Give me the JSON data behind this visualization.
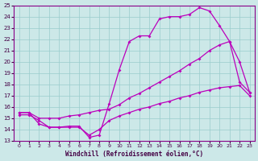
{
  "xlabel": "Windchill (Refroidissement éolien,°C)",
  "background_color": "#cce8e8",
  "line_color": "#bb00bb",
  "grid_color": "#99cccc",
  "xlim": [
    -0.5,
    23.5
  ],
  "ylim": [
    13,
    25
  ],
  "xticks": [
    0,
    1,
    2,
    3,
    4,
    5,
    6,
    7,
    8,
    9,
    10,
    11,
    12,
    13,
    14,
    15,
    16,
    17,
    18,
    19,
    20,
    21,
    22,
    23
  ],
  "yticks": [
    13,
    14,
    15,
    16,
    17,
    18,
    19,
    20,
    21,
    22,
    23,
    24,
    25
  ],
  "line1_x": [
    0,
    1,
    2,
    3,
    4,
    5,
    6,
    7,
    8,
    9,
    10,
    11,
    12,
    13,
    14,
    15,
    16,
    17,
    18,
    19,
    20,
    21,
    22,
    23
  ],
  "line1_y": [
    15.5,
    15.5,
    14.5,
    14.2,
    14.2,
    14.3,
    14.3,
    13.3,
    13.5,
    16.3,
    19.3,
    21.8,
    22.3,
    22.3,
    23.8,
    24.0,
    24.0,
    24.2,
    24.8,
    24.5,
    23.2,
    21.8,
    18.2,
    17.3
  ],
  "line2_x": [
    0,
    1,
    2,
    3,
    4,
    5,
    6,
    7,
    8,
    9,
    10,
    11,
    12,
    13,
    14,
    15,
    16,
    17,
    18,
    19,
    20,
    21,
    22,
    23
  ],
  "line2_y": [
    15.5,
    15.5,
    15.0,
    15.0,
    15.0,
    15.2,
    15.3,
    15.5,
    15.7,
    15.8,
    16.2,
    16.8,
    17.2,
    17.7,
    18.2,
    18.7,
    19.2,
    19.8,
    20.3,
    21.0,
    21.5,
    21.8,
    20.0,
    17.3
  ],
  "line3_x": [
    0,
    1,
    2,
    3,
    4,
    5,
    6,
    7,
    8,
    9,
    10,
    11,
    12,
    13,
    14,
    15,
    16,
    17,
    18,
    19,
    20,
    21,
    22,
    23
  ],
  "line3_y": [
    15.3,
    15.3,
    14.8,
    14.2,
    14.2,
    14.2,
    14.2,
    13.5,
    14.0,
    14.8,
    15.2,
    15.5,
    15.8,
    16.0,
    16.3,
    16.5,
    16.8,
    17.0,
    17.3,
    17.5,
    17.7,
    17.8,
    17.9,
    17.0
  ]
}
